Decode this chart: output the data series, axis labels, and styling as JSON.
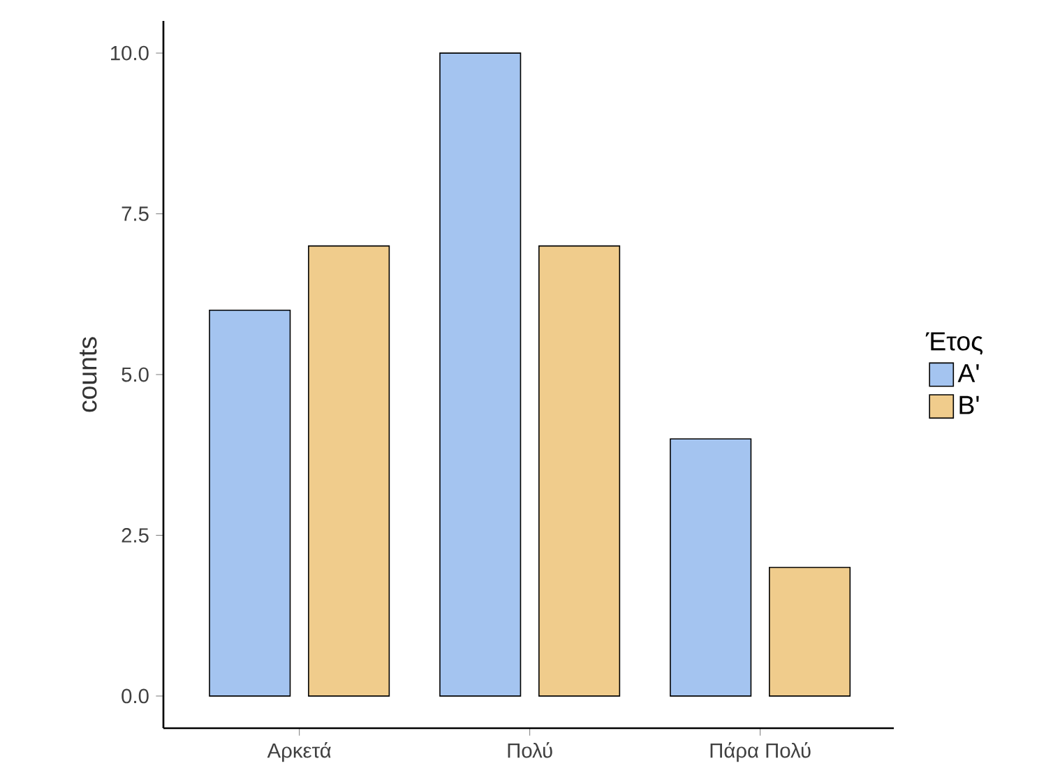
{
  "chart_data": {
    "type": "bar",
    "categories": [
      "Αρκετά",
      "Πολύ",
      "Πάρα Πολύ"
    ],
    "series": [
      {
        "name": "Α'",
        "color": "#a4c4f0",
        "values": [
          6,
          10,
          4
        ]
      },
      {
        "name": "Β'",
        "color": "#f0cc8c",
        "values": [
          7,
          7,
          2
        ]
      }
    ],
    "ylabel": "counts",
    "legend_title": "Έτος",
    "legend": "right",
    "grid": false,
    "ylim": [
      -0.5,
      10.5
    ],
    "yticks": [
      {
        "value": 0,
        "label": "0.0"
      },
      {
        "value": 2.5,
        "label": "2.5"
      },
      {
        "value": 5,
        "label": "5.0"
      },
      {
        "value": 7.5,
        "label": "7.5"
      },
      {
        "value": 10,
        "label": "10.0"
      }
    ]
  }
}
